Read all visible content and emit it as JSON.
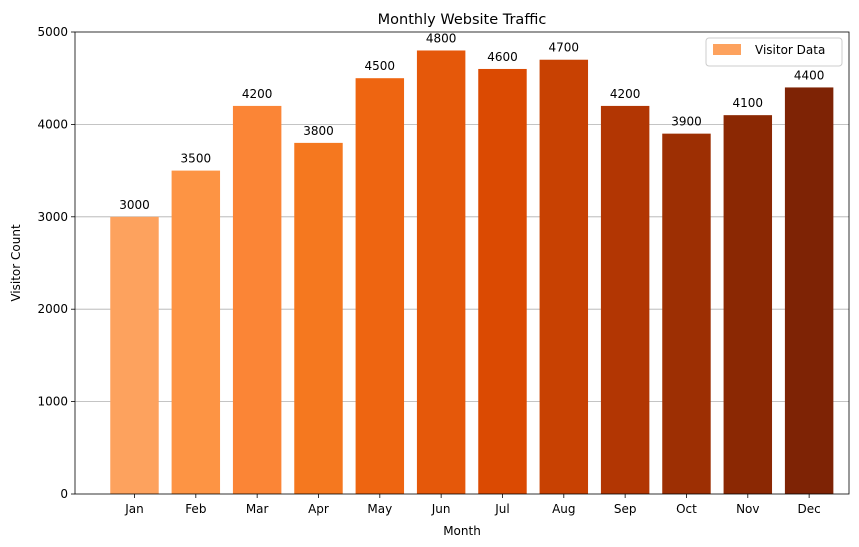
{
  "chart_data": {
    "type": "bar",
    "title": "Monthly Website Traffic",
    "xlabel": "Month",
    "ylabel": "Visitor Count",
    "categories": [
      "Jan",
      "Feb",
      "Mar",
      "Apr",
      "May",
      "Jun",
      "Jul",
      "Aug",
      "Sep",
      "Oct",
      "Nov",
      "Dec"
    ],
    "series": [
      {
        "name": "Visitor Data",
        "values": [
          3000,
          3500,
          4200,
          3800,
          4500,
          4800,
          4600,
          4700,
          4200,
          3900,
          4100,
          4400
        ]
      }
    ],
    "bar_colors": [
      "#fda25e",
      "#fd9444",
      "#fb8536",
      "#f5781f",
      "#ee6511",
      "#e5580a",
      "#db4a02",
      "#c84102",
      "#b23603",
      "#9d2f03",
      "#8b2803",
      "#7e2305"
    ],
    "legend_color": "#fda25e",
    "ylim": [
      0,
      5000
    ],
    "yticks": [
      0,
      1000,
      2000,
      3000,
      4000,
      5000
    ],
    "grid": "y-axis horizontal lines",
    "legend_position": "top-right"
  }
}
